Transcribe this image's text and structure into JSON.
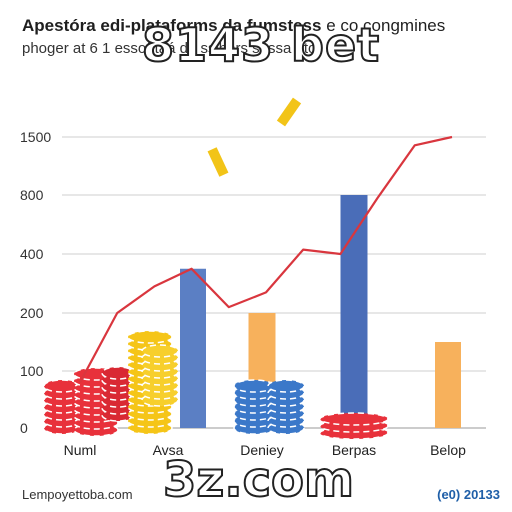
{
  "header": {
    "title_bold": "Apestóra edi-plataforms da fumstess",
    "title_rest": " e co congmines",
    "subtitle": "phoger at 6 1 essoñtâá dá ssibers sessa oto"
  },
  "watermarks": {
    "top": "8143 bet",
    "bottom": "3z.com"
  },
  "footer": {
    "left": "Lempoyettoba.com",
    "right": "(e0) 20133"
  },
  "chart_data": {
    "type": "bar",
    "title": "",
    "xlabel": "",
    "ylabel": "",
    "y_tick_labels": [
      "0",
      "100",
      "200",
      "400",
      "800",
      "1500"
    ],
    "categories": [
      "Numl",
      "Avsa",
      "Deniey",
      "Berpas",
      "Belop"
    ],
    "series": [
      {
        "values": [
          null,
          350,
          200,
          null,
          150
        ],
        "color": "#5b7fc4"
      },
      {
        "values": [
          null,
          null,
          null,
          800,
          null
        ],
        "color": "#4a6db8"
      }
    ],
    "bar_colors": [
      "#5b7fc4",
      "#5b7fc4",
      "#f7b15c",
      "#4a6db8",
      "#f7b15c"
    ],
    "bar_values": [
      0,
      350,
      200,
      800,
      150
    ],
    "trend_line": {
      "color": "#d9363e",
      "values": [
        80,
        200,
        290,
        350,
        220,
        270,
        430,
        400,
        780,
        1400,
        1500
      ]
    },
    "grid": true,
    "legend": "none",
    "decorations": [
      "red-chip-stack",
      "yellow-chip-stack",
      "blue-chip-stack",
      "red-chip-pile",
      "gold-bar"
    ]
  }
}
